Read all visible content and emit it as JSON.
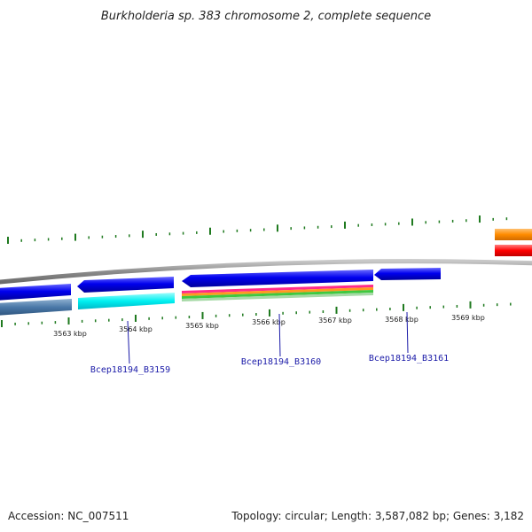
{
  "title": "Burkholderia sp. 383 chromosome 2, complete sequence",
  "footer": {
    "accession": "Accession: NC_007511",
    "summary": "Topology: circular; Length: 3,587,082 bp; Genes: 3,182"
  },
  "ticks": [
    "3563 kbp",
    "3564 kbp",
    "3565 kbp",
    "3566 kbp",
    "3567 kbp",
    "3568 kbp",
    "3569 kbp"
  ],
  "gene_labels": [
    "Bcep18194_B3159",
    "Bcep18194_B3160",
    "Bcep18194_B3161"
  ],
  "colors": {
    "backbone": "#8a8a8a",
    "gene_blue": "#0000ee",
    "steel_blue": "#4a78a8",
    "cyan": "#00f0f0",
    "gc_tick": "#1f7a1f",
    "orange": "#ff8c00",
    "red": "#ff0000",
    "label_line": "#1a1aa8"
  }
}
